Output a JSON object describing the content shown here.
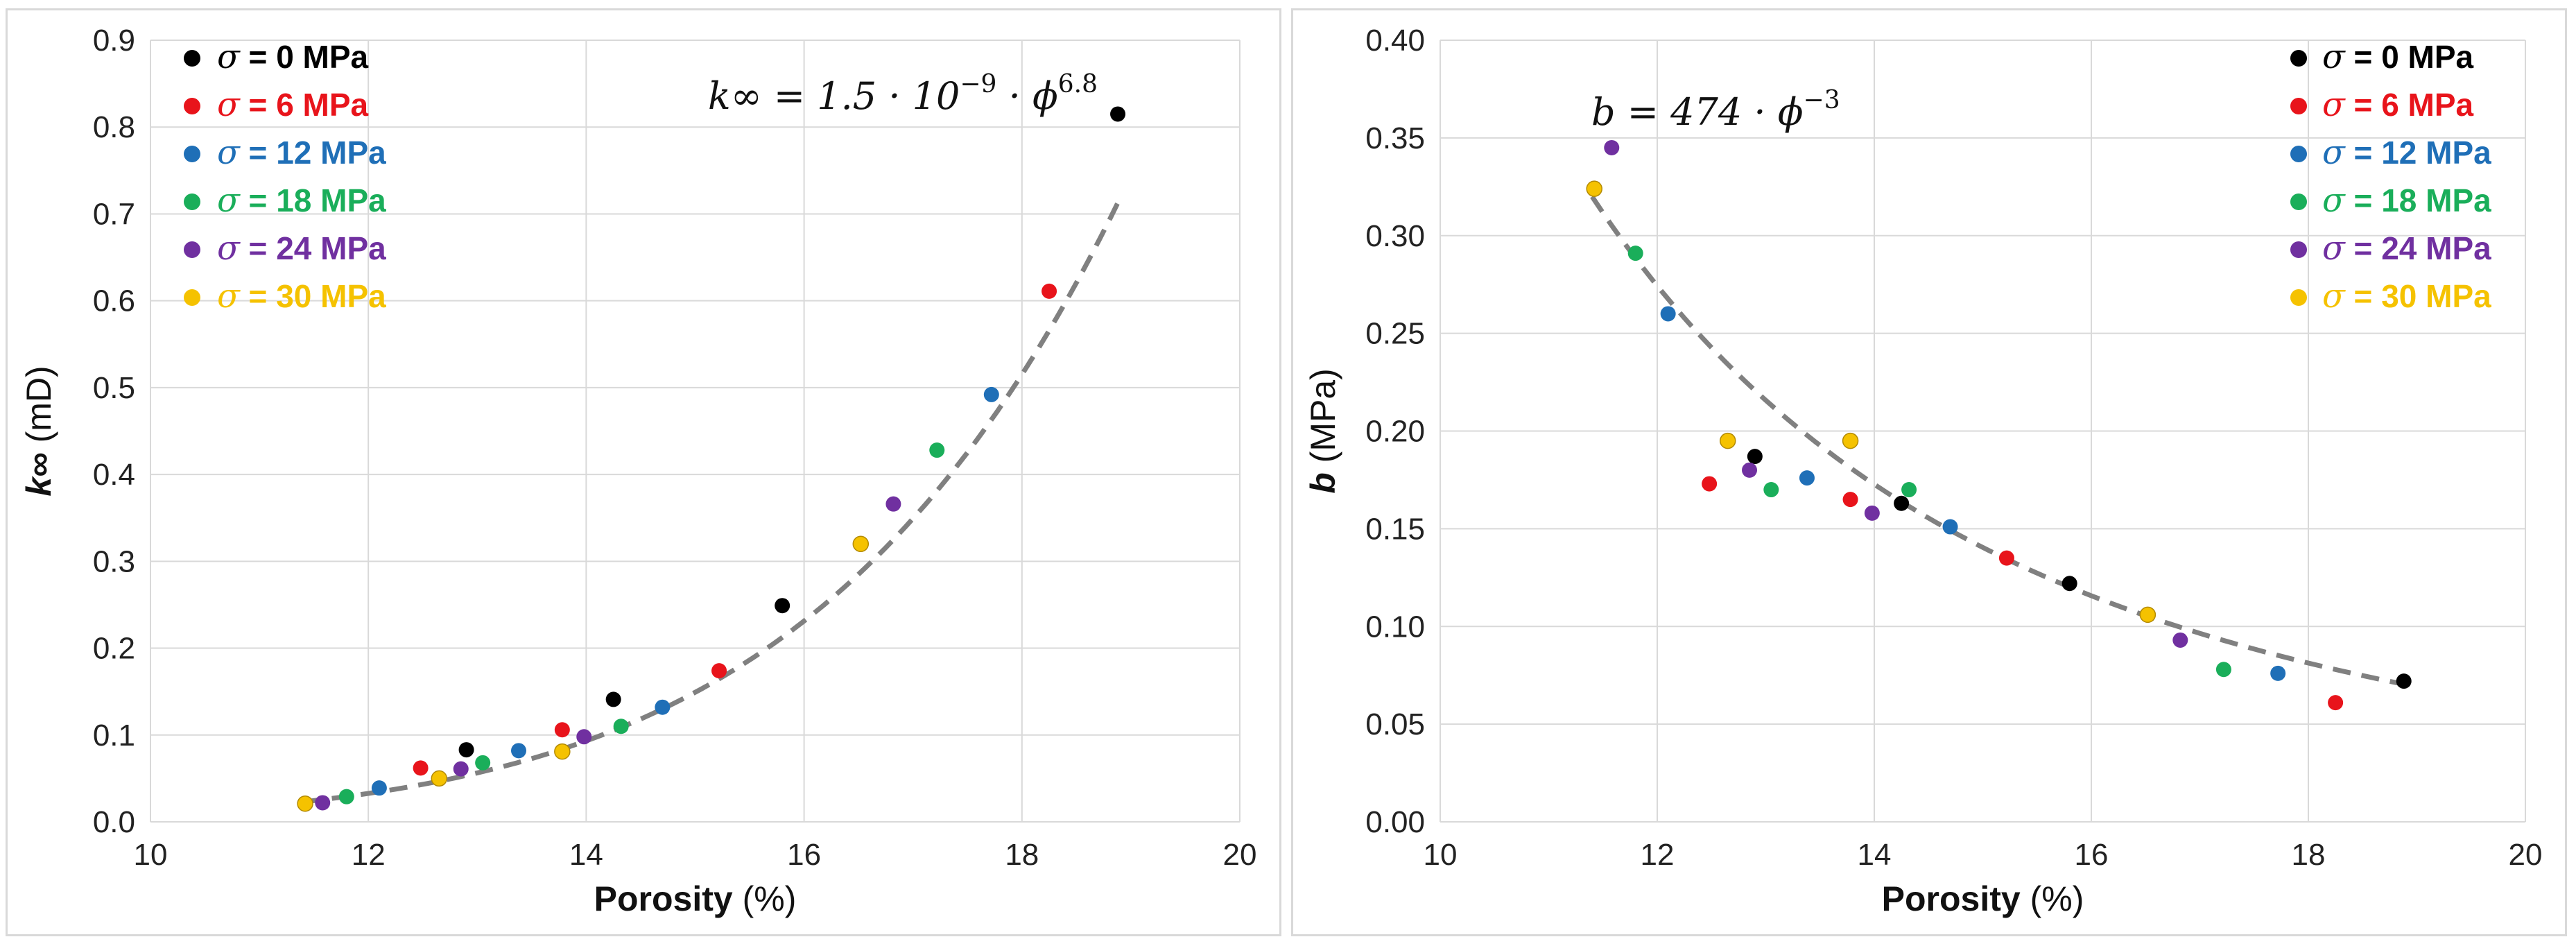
{
  "chart_data": [
    {
      "type": "scatter",
      "title": "",
      "xlabel_main": "Porosity",
      "xlabel_unit": " (%)",
      "ylabel_main": "k∞",
      "ylabel_unit": " (mD)",
      "xlim": [
        10,
        20
      ],
      "ylim": [
        0,
        0.9
      ],
      "xticks": [
        "10",
        "12",
        "14",
        "16",
        "18",
        "20"
      ],
      "yticks": [
        "0.0",
        "0.1",
        "0.2",
        "0.3",
        "0.4",
        "0.5",
        "0.6",
        "0.7",
        "0.8",
        "0.9"
      ],
      "grid": true,
      "legend_position": "top-left",
      "equation": {
        "lhs": "k∞ = 1.5 · 10",
        "exp1": "−9",
        "mid": " · ϕ",
        "exp2": "6.8"
      },
      "fit": {
        "type": "power",
        "coefficient": 1.5e-09,
        "exponent": 6.8,
        "x_range": [
          11.4,
          18.9
        ],
        "style": "dashed",
        "color": "#808080"
      },
      "series": [
        {
          "name_sigma": "σ",
          "name_text": " = 0 MPa",
          "color": "#000000",
          "x": [
            12.9,
            14.25,
            15.8,
            18.88
          ],
          "y": [
            0.083,
            0.141,
            0.249,
            0.815
          ]
        },
        {
          "name_sigma": "σ",
          "name_text": " = 6 MPa",
          "color": "#e8141b",
          "x": [
            12.48,
            13.78,
            15.22,
            18.25
          ],
          "y": [
            0.062,
            0.106,
            0.174,
            0.611
          ]
        },
        {
          "name_sigma": "σ",
          "name_text": " = 12 MPa",
          "color": "#1f6fb7",
          "x": [
            12.1,
            13.38,
            14.7,
            17.72
          ],
          "y": [
            0.039,
            0.082,
            0.132,
            0.492
          ]
        },
        {
          "name_sigma": "σ",
          "name_text": " = 18 MPa",
          "color": "#1aae5a",
          "x": [
            11.8,
            13.05,
            14.32,
            17.22
          ],
          "y": [
            0.029,
            0.068,
            0.11,
            0.428
          ]
        },
        {
          "name_sigma": "σ",
          "name_text": " = 24 MPa",
          "color": "#7030a0",
          "x": [
            11.58,
            12.85,
            13.98,
            16.82
          ],
          "y": [
            0.022,
            0.061,
            0.098,
            0.366
          ]
        },
        {
          "name_sigma": "σ",
          "name_text": " = 30 MPa",
          "color": "#f5c200",
          "x": [
            11.42,
            12.65,
            13.78,
            16.52
          ],
          "y": [
            0.021,
            0.05,
            0.081,
            0.32
          ]
        }
      ]
    },
    {
      "type": "scatter",
      "title": "",
      "xlabel_main": "Porosity",
      "xlabel_unit": " (%)",
      "ylabel_main": "b",
      "ylabel_unit": " (MPa)",
      "xlim": [
        10,
        20
      ],
      "ylim": [
        0,
        0.4
      ],
      "xticks": [
        "10",
        "12",
        "14",
        "16",
        "18",
        "20"
      ],
      "yticks": [
        "0.00",
        "0.05",
        "0.10",
        "0.15",
        "0.20",
        "0.25",
        "0.30",
        "0.35",
        "0.40"
      ],
      "grid": true,
      "legend_position": "top-right",
      "equation": {
        "lhs": "b = 474 · ϕ",
        "exp1": "−3",
        "mid": "",
        "exp2": ""
      },
      "fit": {
        "type": "power",
        "coefficient": 474,
        "exponent": -3,
        "x_range": [
          11.4,
          18.9
        ],
        "style": "dashed",
        "color": "#808080"
      },
      "series": [
        {
          "name_sigma": "σ",
          "name_text": " = 0 MPa",
          "color": "#000000",
          "x": [
            12.9,
            14.25,
            15.8,
            18.88
          ],
          "y": [
            0.187,
            0.163,
            0.122,
            0.072
          ]
        },
        {
          "name_sigma": "σ",
          "name_text": " = 6 MPa",
          "color": "#e8141b",
          "x": [
            12.48,
            13.78,
            15.22,
            18.25
          ],
          "y": [
            0.173,
            0.165,
            0.135,
            0.061
          ]
        },
        {
          "name_sigma": "σ",
          "name_text": " = 12 MPa",
          "color": "#1f6fb7",
          "x": [
            12.1,
            13.38,
            14.7,
            17.72
          ],
          "y": [
            0.26,
            0.176,
            0.151,
            0.076
          ]
        },
        {
          "name_sigma": "σ",
          "name_text": " = 18 MPa",
          "color": "#1aae5a",
          "x": [
            11.8,
            13.05,
            14.32,
            17.22
          ],
          "y": [
            0.291,
            0.17,
            0.17,
            0.078
          ]
        },
        {
          "name_sigma": "σ",
          "name_text": " = 24 MPa",
          "color": "#7030a0",
          "x": [
            11.58,
            12.85,
            13.98,
            16.82
          ],
          "y": [
            0.345,
            0.18,
            0.158,
            0.093
          ]
        },
        {
          "name_sigma": "σ",
          "name_text": " = 30 MPa",
          "color": "#f5c200",
          "x": [
            11.42,
            12.65,
            13.78,
            16.52
          ],
          "y": [
            0.324,
            0.195,
            0.195,
            0.106
          ]
        }
      ]
    }
  ]
}
